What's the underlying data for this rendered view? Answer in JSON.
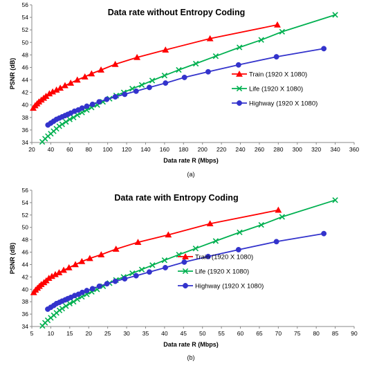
{
  "chart_data": [
    {
      "type": "line",
      "panel_label": "(a)",
      "title": "Data rate without Entropy Coding",
      "xlabel": "Data rate R (Mbps)",
      "ylabel": "PSNR (dB)",
      "xlim": [
        20,
        360
      ],
      "ylim": [
        34,
        56
      ],
      "xticks": [
        20,
        40,
        60,
        80,
        100,
        120,
        140,
        160,
        180,
        200,
        220,
        240,
        260,
        280,
        300,
        320,
        340,
        360
      ],
      "yticks": [
        34,
        36,
        38,
        40,
        42,
        44,
        46,
        48,
        50,
        52,
        54,
        56
      ],
      "grid": false,
      "legend_position": "center-right",
      "series": [
        {
          "name": "Train (1920 X 1080)",
          "color": "#ff0000",
          "marker": "triangle",
          "x": [
            21.5,
            23.5,
            25.5,
            27.5,
            30,
            32.5,
            35,
            38.5,
            42,
            46,
            50,
            55,
            61,
            68,
            76,
            83,
            93,
            108,
            131,
            161,
            208,
            279
          ],
          "y": [
            39.5,
            39.9,
            40.2,
            40.5,
            40.8,
            41.1,
            41.4,
            41.8,
            42.1,
            42.4,
            42.7,
            43.1,
            43.5,
            44.0,
            44.5,
            45.0,
            45.6,
            46.5,
            47.6,
            48.8,
            50.6,
            52.8
          ]
        },
        {
          "name": "Life (1920 X 1080)",
          "color": "#00b050",
          "marker": "x",
          "x": [
            31,
            34,
            37,
            40,
            43,
            46,
            49,
            52,
            56,
            60,
            64,
            68,
            73,
            78,
            83,
            89,
            95,
            102,
            109,
            117,
            126,
            136,
            147,
            160,
            175,
            193,
            214,
            239,
            262,
            284,
            340
          ],
          "y": [
            34.1,
            34.6,
            35.0,
            35.4,
            35.8,
            36.2,
            36.6,
            36.9,
            37.3,
            37.7,
            38.0,
            38.4,
            38.8,
            39.2,
            39.6,
            40.0,
            40.5,
            41.0,
            41.5,
            42.0,
            42.6,
            43.2,
            43.9,
            44.7,
            45.6,
            46.6,
            47.8,
            49.2,
            50.4,
            51.7,
            54.4
          ]
        },
        {
          "name": "Highway (1920 X 1080)",
          "color": "#3333cc",
          "marker": "circle",
          "x": [
            37,
            40,
            43,
            46,
            49,
            52,
            55,
            58,
            61,
            65,
            69,
            73,
            78,
            84,
            91,
            99,
            108,
            118,
            130,
            144,
            161,
            181,
            206,
            238,
            278,
            328
          ],
          "y": [
            36.8,
            37.1,
            37.4,
            37.7,
            37.9,
            38.1,
            38.3,
            38.5,
            38.7,
            39.0,
            39.2,
            39.5,
            39.8,
            40.1,
            40.5,
            40.9,
            41.3,
            41.7,
            42.2,
            42.8,
            43.5,
            44.4,
            45.3,
            46.4,
            47.7,
            49.0
          ]
        }
      ]
    },
    {
      "type": "line",
      "panel_label": "(b)",
      "title": "Data rate with Entropy Coding",
      "xlabel": "Data rate R (Mbps)",
      "ylabel": "PSNR (dB)",
      "xlim": [
        5,
        90
      ],
      "ylim": [
        34,
        56
      ],
      "xticks": [
        5,
        10,
        15,
        20,
        25,
        30,
        35,
        40,
        45,
        50,
        55,
        60,
        65,
        70,
        75,
        80,
        85,
        90
      ],
      "yticks": [
        34,
        36,
        38,
        40,
        42,
        44,
        46,
        48,
        50,
        52,
        54,
        56
      ],
      "grid": false,
      "legend_position": "center-right",
      "series": [
        {
          "name": "Train (1920 X 1080)",
          "color": "#ff0000",
          "marker": "triangle",
          "x": [
            5.5,
            6.0,
            6.5,
            7.0,
            7.5,
            8.2,
            8.8,
            9.5,
            10.3,
            11.2,
            12.2,
            13.4,
            14.8,
            16.5,
            18.2,
            20.3,
            23.3,
            27.2,
            33,
            41,
            52,
            70
          ],
          "y": [
            39.5,
            39.9,
            40.2,
            40.5,
            40.8,
            41.1,
            41.4,
            41.8,
            42.1,
            42.4,
            42.7,
            43.1,
            43.5,
            44.0,
            44.5,
            45.0,
            45.6,
            46.5,
            47.6,
            48.8,
            50.6,
            52.8
          ]
        },
        {
          "name": "Life (1920 X 1080)",
          "color": "#00b050",
          "marker": "x",
          "x": [
            7.8,
            8.5,
            9.2,
            10.0,
            10.8,
            11.5,
            12.3,
            13.0,
            14.0,
            15.0,
            16.0,
            17.0,
            18.2,
            19.5,
            20.8,
            22.2,
            23.8,
            25.5,
            27.2,
            29.2,
            31.5,
            34,
            36.8,
            40,
            43.8,
            48.2,
            53.5,
            59.8,
            65.5,
            71,
            85
          ],
          "y": [
            34.1,
            34.6,
            35.0,
            35.4,
            35.8,
            36.2,
            36.6,
            36.9,
            37.3,
            37.7,
            38.0,
            38.4,
            38.8,
            39.2,
            39.6,
            40.0,
            40.5,
            41.0,
            41.5,
            42.0,
            42.6,
            43.2,
            43.9,
            44.7,
            45.6,
            46.6,
            47.8,
            49.2,
            50.4,
            51.7,
            54.4
          ]
        },
        {
          "name": "Highway (1920 X 1080)",
          "color": "#3333cc",
          "marker": "circle",
          "x": [
            9.2,
            10.0,
            10.8,
            11.5,
            12.3,
            13.0,
            13.8,
            14.5,
            15.3,
            16.3,
            17.3,
            18.3,
            19.5,
            21.0,
            22.8,
            24.8,
            27,
            29.5,
            32.5,
            36,
            40.2,
            45.2,
            51.5,
            59.5,
            69.5,
            82
          ],
          "y": [
            36.8,
            37.1,
            37.4,
            37.7,
            37.9,
            38.1,
            38.3,
            38.5,
            38.7,
            39.0,
            39.2,
            39.5,
            39.8,
            40.1,
            40.5,
            40.9,
            41.3,
            41.7,
            42.2,
            42.8,
            43.5,
            44.4,
            45.3,
            46.4,
            47.7,
            49.0
          ]
        }
      ]
    }
  ]
}
